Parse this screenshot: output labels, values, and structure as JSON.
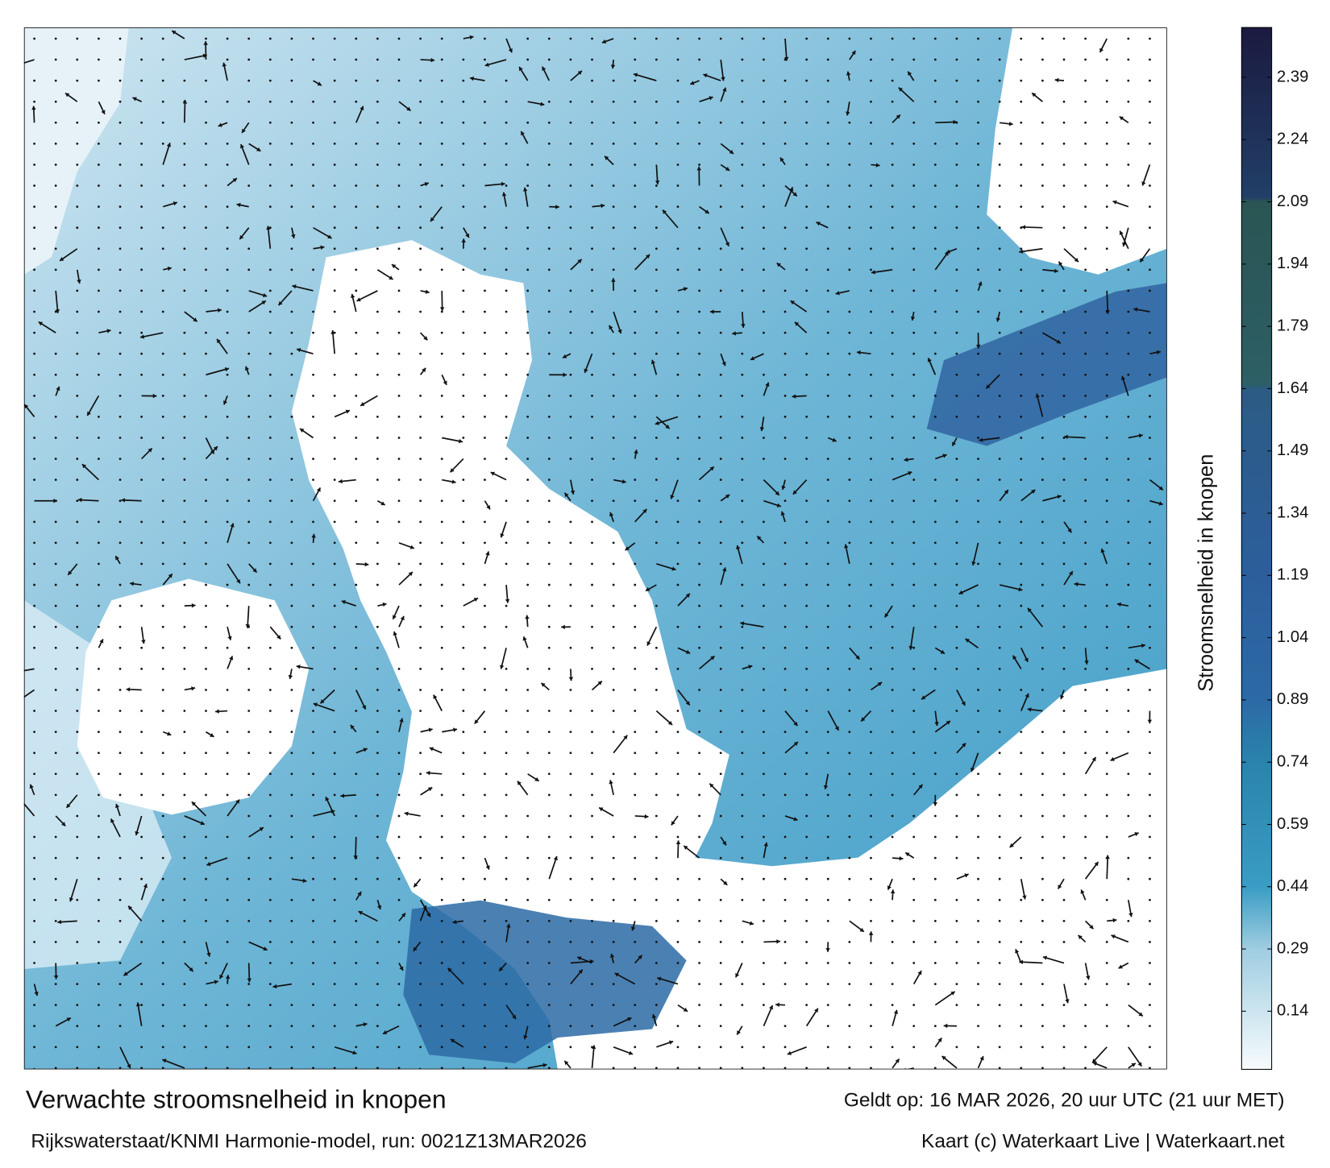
{
  "title": "Verwachte stroomsnelheid in knopen",
  "valid_time": "Geldt op: 16 MAR 2026, 20 uur UTC (21 uur MET)",
  "model_run": "Rijkswaterstaat/KNMI Harmonie-model, run: 0021Z13MAR2026",
  "credit": "Kaart (c) Waterkaart Live | Waterkaart.net",
  "colorbar": {
    "label": "Stroomsnelheid in knopen",
    "range": [
      0,
      2.51
    ],
    "ticks": [
      0.14,
      0.29,
      0.44,
      0.59,
      0.74,
      0.89,
      1.04,
      1.19,
      1.34,
      1.49,
      1.64,
      1.79,
      1.94,
      2.09,
      2.24,
      2.39
    ],
    "stops": [
      {
        "value": 0,
        "color": "#f7fbfd"
      },
      {
        "value": 0.29,
        "color": "#9fcde1"
      },
      {
        "value": 0.44,
        "color": "#3a9cc4"
      },
      {
        "value": 0.74,
        "color": "#2a83ad"
      },
      {
        "value": 0.89,
        "color": "#2c6aa5"
      },
      {
        "value": 1.19,
        "color": "#2c5e9c"
      },
      {
        "value": 1.64,
        "color": "#2c5b84"
      },
      {
        "value": 1.65,
        "color": "#2c5f66"
      },
      {
        "value": 2.09,
        "color": "#2a5553"
      },
      {
        "value": 2.1,
        "color": "#213f68"
      },
      {
        "value": 2.51,
        "color": "#1b1a40"
      }
    ]
  }
}
